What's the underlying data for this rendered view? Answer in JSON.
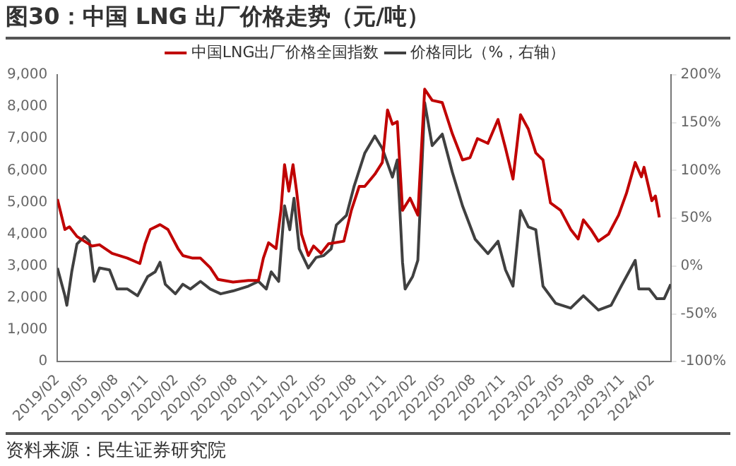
{
  "chart_data": {
    "type": "line",
    "title": "图30：中国 LNG 出厂价格走势（元/吨）",
    "legend": "top",
    "grid": false,
    "marker": "none",
    "line_style": "solid",
    "xlim": [
      "2019-02-01",
      "2024-03-28"
    ],
    "xticks": [
      {
        "value": "2019-02",
        "label": "2019/02"
      },
      {
        "value": "2019-05",
        "label": "2019/05"
      },
      {
        "value": "2019-08",
        "label": "2019/08"
      },
      {
        "value": "2019-11",
        "label": "2019/11"
      },
      {
        "value": "2020-02",
        "label": "2020/02"
      },
      {
        "value": "2020-05",
        "label": "2020/05"
      },
      {
        "value": "2020-08",
        "label": "2020/08"
      },
      {
        "value": "2020-11",
        "label": "2020/11"
      },
      {
        "value": "2021-02",
        "label": "2021/02"
      },
      {
        "value": "2021-05",
        "label": "2021/05"
      },
      {
        "value": "2021-08",
        "label": "2021/08"
      },
      {
        "value": "2021-11",
        "label": "2021/11"
      },
      {
        "value": "2022-02",
        "label": "2022/02"
      },
      {
        "value": "2022-05",
        "label": "2022/05"
      },
      {
        "value": "2022-08",
        "label": "2022/08"
      },
      {
        "value": "2022-11",
        "label": "2022/11"
      },
      {
        "value": "2023-02",
        "label": "2023/02"
      },
      {
        "value": "2023-05",
        "label": "2023/05"
      },
      {
        "value": "2023-08",
        "label": "2023/08"
      },
      {
        "value": "2023-11",
        "label": "2023/11"
      },
      {
        "value": "2024-02",
        "label": "2024/02"
      }
    ],
    "ylim": [
      0,
      9000
    ],
    "yticks": [
      0,
      {
        "value": 1000,
        "label": "1,000"
      },
      {
        "value": 2000,
        "label": "2,000"
      },
      {
        "value": 3000,
        "label": "3,000"
      },
      {
        "value": 4000,
        "label": "4,000"
      },
      {
        "value": 5000,
        "label": "5,000"
      },
      {
        "value": 6000,
        "label": "6,000"
      },
      {
        "value": 7000,
        "label": "7,000"
      },
      {
        "value": 8000,
        "label": "8,000"
      },
      {
        "value": 9000,
        "label": "9,000"
      }
    ],
    "y2lim": [
      -100,
      200
    ],
    "y2ticks": [
      {
        "value": -100,
        "label": "-100%"
      },
      {
        "value": -50,
        "label": "-50%"
      },
      {
        "value": 0,
        "label": "0%"
      },
      {
        "value": 50,
        "label": "50%"
      },
      {
        "value": 100,
        "label": "100%"
      },
      {
        "value": 150,
        "label": "150%"
      },
      {
        "value": 200,
        "label": "200%"
      }
    ],
    "annotations": [
      "资料来源：民生证券研究院"
    ],
    "series": [
      {
        "name": "中国LNG出厂价格全国指数",
        "color": "#c00000",
        "x": [
          "2019-02-01",
          "2019-02-24",
          "2019-03-10",
          "2019-04-02",
          "2019-05-18",
          "2019-06-10",
          "2019-07-19",
          "2019-09-04",
          "2019-10-12",
          "2019-10-28",
          "2019-11-13",
          "2019-12-13",
          "2020-01-06",
          "2020-02-06",
          "2020-02-21",
          "2020-03-22",
          "2020-04-15",
          "2020-05-15",
          "2020-06-08",
          "2020-07-24",
          "2020-09-09",
          "2020-10-10",
          "2020-10-25",
          "2020-11-10",
          "2020-12-03",
          "2020-12-18",
          "2020-12-29",
          "2021-01-11",
          "2021-01-24",
          "2021-02-04",
          "2021-02-19",
          "2021-03-12",
          "2021-03-28",
          "2021-04-20",
          "2021-05-13",
          "2021-06-29",
          "2021-07-22",
          "2021-08-15",
          "2021-09-01",
          "2021-10-02",
          "2021-10-25",
          "2021-11-10",
          "2021-11-25",
          "2021-12-10",
          "2021-12-26",
          "2022-01-18",
          "2022-02-11",
          "2022-03-04",
          "2022-03-27",
          "2022-04-27",
          "2022-05-28",
          "2022-06-28",
          "2022-07-21",
          "2022-08-13",
          "2022-09-14",
          "2022-10-15",
          "2022-11-07",
          "2022-11-30",
          "2022-12-23",
          "2023-01-16",
          "2023-02-08",
          "2023-03-02",
          "2023-03-25",
          "2023-04-25",
          "2023-05-26",
          "2023-06-18",
          "2023-07-04",
          "2023-07-27",
          "2023-08-19",
          "2023-09-19",
          "2023-10-20",
          "2023-11-13",
          "2023-12-10",
          "2023-12-29",
          "2024-01-06",
          "2024-01-30",
          "2024-02-10",
          "2024-02-22"
        ],
        "values": [
          5100,
          4150,
          4230,
          3930,
          3630,
          3670,
          3400,
          3250,
          3080,
          3700,
          4150,
          4300,
          4150,
          3550,
          3330,
          3250,
          3250,
          2950,
          2580,
          2500,
          2550,
          2550,
          3250,
          3730,
          3550,
          4750,
          6180,
          5350,
          6180,
          5350,
          4000,
          3330,
          3630,
          3400,
          3700,
          3780,
          4750,
          5500,
          5500,
          5880,
          6250,
          7900,
          7450,
          7530,
          4750,
          5130,
          4600,
          8550,
          8200,
          8130,
          7150,
          6330,
          6400,
          7000,
          6850,
          7600,
          6700,
          5730,
          7750,
          7300,
          6550,
          6330,
          4980,
          4750,
          4150,
          3850,
          4450,
          4150,
          3780,
          4000,
          4600,
          5280,
          6250,
          5800,
          6100,
          5050,
          5200,
          4530
        ]
      },
      {
        "name": "价格同比（%，右轴）",
        "color": "#404040",
        "axis": "y2",
        "x": [
          "2019-02-01",
          "2019-02-24",
          "2019-03-02",
          "2019-03-17",
          "2019-04-02",
          "2019-04-25",
          "2019-05-10",
          "2019-05-25",
          "2019-06-10",
          "2019-07-11",
          "2019-08-03",
          "2019-09-04",
          "2019-10-05",
          "2019-11-05",
          "2019-11-28",
          "2019-12-13",
          "2019-12-29",
          "2020-01-29",
          "2020-02-21",
          "2020-03-15",
          "2020-04-15",
          "2020-05-15",
          "2020-06-16",
          "2020-07-24",
          "2020-09-09",
          "2020-10-10",
          "2020-11-03",
          "2020-11-18",
          "2020-12-11",
          "2020-12-29",
          "2021-01-14",
          "2021-01-27",
          "2021-02-12",
          "2021-03-12",
          "2021-04-05",
          "2021-04-28",
          "2021-05-21",
          "2021-06-06",
          "2021-07-07",
          "2021-07-30",
          "2021-09-01",
          "2021-10-02",
          "2021-10-25",
          "2021-11-25",
          "2021-12-10",
          "2021-12-26",
          "2022-01-03",
          "2022-01-26",
          "2022-02-11",
          "2022-03-04",
          "2022-03-27",
          "2022-04-27",
          "2022-05-28",
          "2022-06-28",
          "2022-08-06",
          "2022-09-14",
          "2022-10-15",
          "2022-11-07",
          "2022-11-30",
          "2022-12-23",
          "2023-01-16",
          "2023-02-08",
          "2023-03-02",
          "2023-04-10",
          "2023-05-26",
          "2023-07-04",
          "2023-08-19",
          "2023-09-27",
          "2023-10-28",
          "2023-12-10",
          "2023-12-21",
          "2024-01-22",
          "2024-02-14",
          "2024-03-08",
          "2024-03-28"
        ],
        "values": [
          -2,
          -31,
          -41,
          -6,
          23,
          31,
          26,
          -16,
          -2,
          -4,
          -24,
          -24,
          -31,
          -11,
          -6,
          4,
          -19,
          -29,
          -19,
          -24,
          -16,
          -24,
          -29,
          -26,
          -21,
          -16,
          -24,
          -6,
          -16,
          63,
          38,
          71,
          18,
          -2,
          9,
          11,
          18,
          43,
          53,
          83,
          118,
          136,
          123,
          93,
          111,
          4,
          -24,
          -11,
          6,
          171,
          126,
          138,
          98,
          63,
          28,
          13,
          26,
          -4,
          -21,
          58,
          41,
          38,
          -21,
          -39,
          -44,
          -31,
          -46,
          -41,
          -21,
          6,
          -24,
          -24,
          -34,
          -34,
          -19
        ]
      }
    ]
  }
}
